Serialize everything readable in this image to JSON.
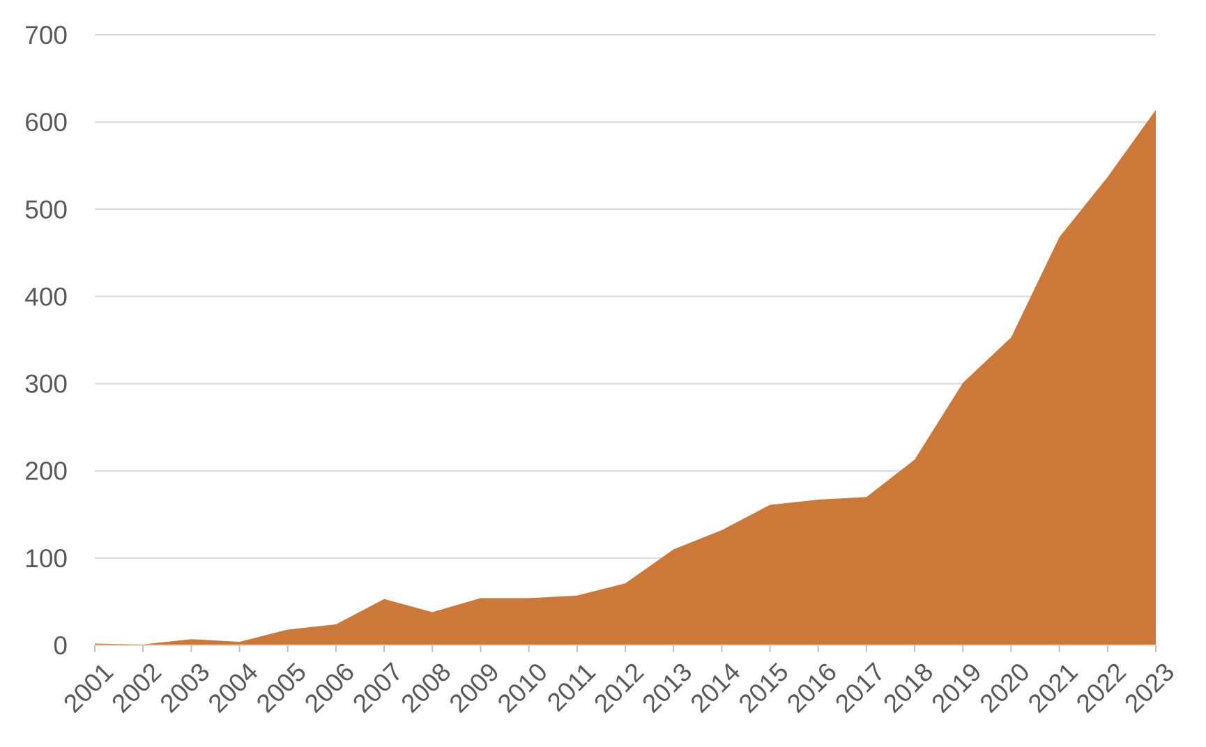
{
  "chart_data": {
    "type": "area",
    "title": "",
    "xlabel": "",
    "ylabel": "",
    "x": [
      "2001",
      "2002",
      "2003",
      "2004",
      "2005",
      "2006",
      "2007",
      "2008",
      "2009",
      "2010",
      "2011",
      "2012",
      "2013",
      "2014",
      "2015",
      "2016",
      "2017",
      "2018",
      "2019",
      "2020",
      "2021",
      "2022",
      "2023"
    ],
    "series": [
      {
        "values": [
          2,
          1,
          7,
          4,
          18,
          24,
          53,
          38,
          54,
          54,
          57,
          71,
          110,
          132,
          161,
          167,
          170,
          213,
          301,
          353,
          468,
          537,
          614
        ],
        "color": "#cc7838"
      }
    ],
    "ylim": [
      0,
      700
    ],
    "yticks": [
      "0",
      "100",
      "200",
      "300",
      "400",
      "500",
      "600",
      "700"
    ],
    "grid": true,
    "legend": "none"
  }
}
